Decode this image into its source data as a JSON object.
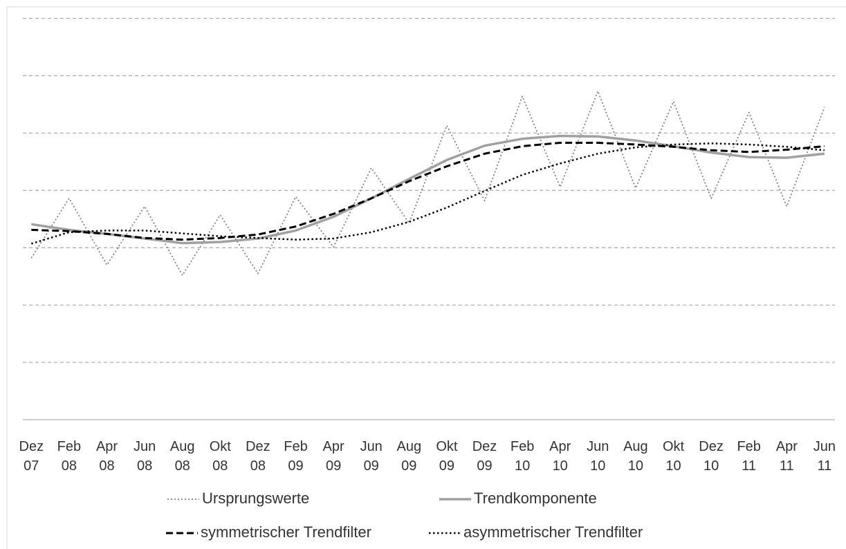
{
  "chart_data": {
    "type": "line",
    "categories": [
      "Dez 07",
      "Feb 08",
      "Apr 08",
      "Jun 08",
      "Aug 08",
      "Okt 08",
      "Dez 08",
      "Feb 09",
      "Apr 09",
      "Jun 09",
      "Aug 09",
      "Okt 09",
      "Dez 09",
      "Feb 10",
      "Apr 10",
      "Jun 10",
      "Aug 10",
      "Okt 10",
      "Dez 10",
      "Feb 11",
      "Apr 11",
      "Jun 11"
    ],
    "series": [
      {
        "name": "Ursprungswerte",
        "color": "#808080",
        "style": "dotted",
        "values": [
          2.82,
          3.86,
          2.7,
          3.72,
          2.52,
          3.57,
          2.55,
          3.89,
          3.01,
          4.39,
          3.43,
          5.13,
          3.82,
          5.64,
          4.06,
          5.73,
          4.04,
          5.55,
          3.86,
          5.36,
          3.72,
          5.45
        ]
      },
      {
        "name": "Trendkomponente",
        "color": "#a0a0a0",
        "style": "solid",
        "values": [
          3.41,
          3.31,
          3.24,
          3.16,
          3.08,
          3.1,
          3.16,
          3.3,
          3.54,
          3.86,
          4.2,
          4.53,
          4.78,
          4.9,
          4.95,
          4.94,
          4.87,
          4.77,
          4.66,
          4.58,
          4.57,
          4.64
        ]
      },
      {
        "name": "symmetrischer Trendfilter",
        "color": "#000000",
        "style": "dashed",
        "values": [
          3.31,
          3.29,
          3.24,
          3.17,
          3.14,
          3.17,
          3.23,
          3.37,
          3.59,
          3.86,
          4.16,
          4.42,
          4.64,
          4.77,
          4.83,
          4.83,
          4.8,
          4.76,
          4.7,
          4.67,
          4.71,
          4.77
        ]
      },
      {
        "name": "asymmetrischer Trendfilter",
        "color": "#000000",
        "style": "dotted-bold",
        "values": [
          3.07,
          3.27,
          3.3,
          3.3,
          3.25,
          3.2,
          3.17,
          3.14,
          3.16,
          3.27,
          3.45,
          3.7,
          3.99,
          4.27,
          4.47,
          4.64,
          4.75,
          4.8,
          4.82,
          4.8,
          4.76,
          4.7
        ]
      }
    ],
    "ylim": [
      0,
      7.2
    ],
    "yticks": [
      0,
      1,
      2,
      3,
      4,
      5,
      6,
      7
    ],
    "grid": true
  }
}
